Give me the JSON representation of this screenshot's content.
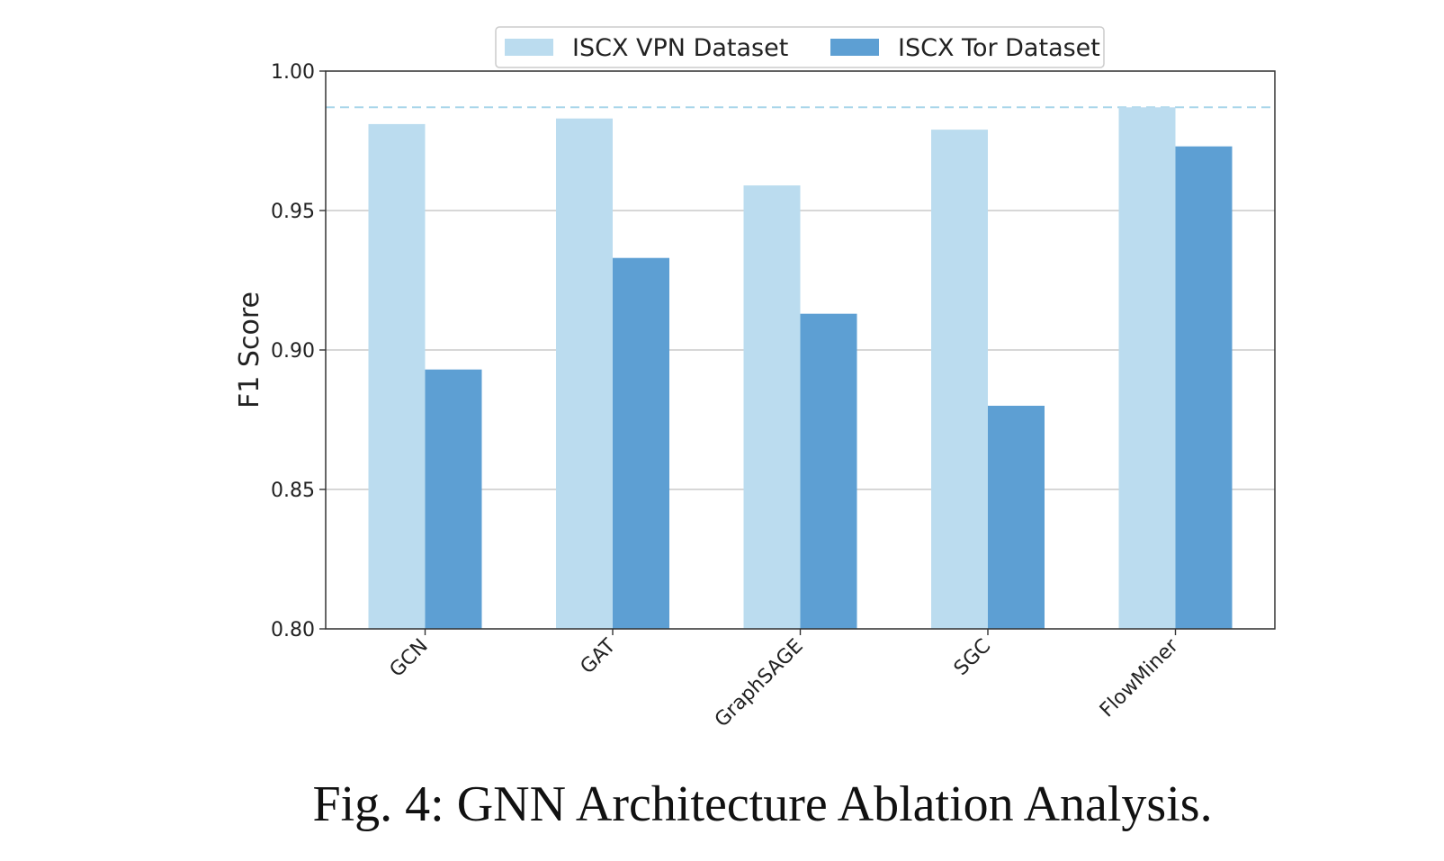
{
  "chart_data": {
    "type": "bar",
    "title": "",
    "xlabel": "",
    "ylabel": "F1 Score",
    "ylim": [
      0.8,
      1.0
    ],
    "yticks": [
      "0.80",
      "0.85",
      "0.90",
      "0.95",
      "1.00"
    ],
    "ytick_values": [
      0.8,
      0.85,
      0.9,
      0.95,
      1.0
    ],
    "grid": "horizontal",
    "legend_position": "top-center",
    "categories": [
      "GCN",
      "GAT",
      "GraphSAGE",
      "SGC",
      "FlowMiner"
    ],
    "series": [
      {
        "name": "ISCX VPN Dataset",
        "color": "#bbdcef",
        "values": [
          0.981,
          0.983,
          0.959,
          0.979,
          0.987
        ]
      },
      {
        "name": "ISCX Tor Dataset",
        "color": "#5d9fd3",
        "values": [
          0.893,
          0.933,
          0.913,
          0.88,
          0.973
        ]
      }
    ],
    "reference_line": {
      "value": 0.987,
      "style": "dashed",
      "color": "#a9d6ea"
    }
  },
  "caption": "Fig. 4: GNN Architecture Ablation Analysis."
}
